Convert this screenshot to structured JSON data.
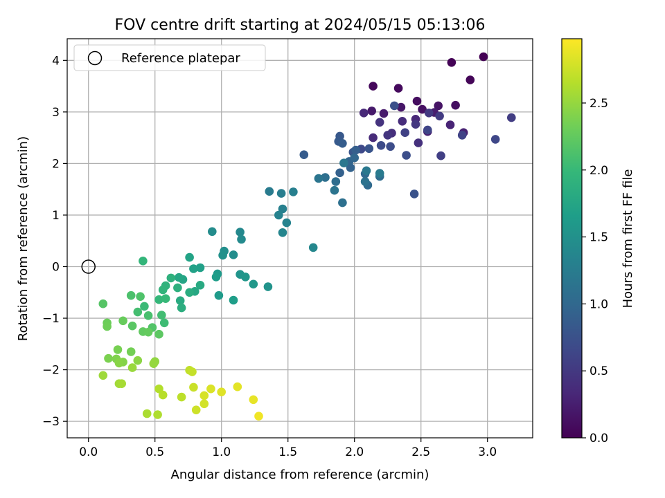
{
  "chart_data": {
    "type": "scatter",
    "title": "FOV centre drift starting at 2024/05/15 05:13:06",
    "xlabel": "Angular distance from reference (arcmin)",
    "ylabel": "Rotation from reference (arcmin)",
    "xlim": [
      -0.16,
      3.34
    ],
    "ylim": [
      -3.32,
      4.42
    ],
    "xticks": [
      0.0,
      0.5,
      1.0,
      1.5,
      2.0,
      2.5,
      3.0
    ],
    "xtick_labels": [
      "0.0",
      "0.5",
      "1.0",
      "1.5",
      "2.0",
      "2.5",
      "3.0"
    ],
    "yticks": [
      -3,
      -2,
      -1,
      0,
      1,
      2,
      3,
      4
    ],
    "ytick_labels": [
      "−3",
      "−2",
      "−1",
      "0",
      "1",
      "2",
      "3",
      "4"
    ],
    "grid": true,
    "legend": {
      "placement": "top-left",
      "entries": [
        {
          "label": "Reference platepar",
          "marker": "hollow-circle"
        }
      ]
    },
    "reference_point": {
      "x": 0.0,
      "y": 0.0,
      "label": "Reference platepar"
    },
    "colorbar": {
      "label": "Hours from first FF file",
      "colormap": "viridis",
      "range": [
        0.0,
        2.98
      ],
      "ticks": [
        0.0,
        0.5,
        1.0,
        1.5,
        2.0,
        2.5
      ],
      "tick_labels": [
        "0.0",
        "0.5",
        "1.0",
        "1.5",
        "2.0",
        "2.5"
      ]
    },
    "colormap_stops": [
      "#440154",
      "#482878",
      "#3e4989",
      "#31688e",
      "#26828e",
      "#1f9e89",
      "#35b779",
      "#6ece58",
      "#b5de2b",
      "#fde725"
    ],
    "points": [
      [
        2.97,
        4.07,
        0.0
      ],
      [
        2.73,
        3.96,
        0.02
      ],
      [
        2.87,
        3.62,
        0.04
      ],
      [
        2.14,
        3.5,
        0.06
      ],
      [
        2.33,
        3.46,
        0.08
      ],
      [
        2.47,
        3.21,
        0.1
      ],
      [
        2.76,
        3.13,
        0.12
      ],
      [
        2.51,
        3.05,
        0.14
      ],
      [
        2.63,
        3.12,
        0.16
      ],
      [
        2.35,
        3.09,
        0.18
      ],
      [
        2.13,
        3.02,
        0.2
      ],
      [
        2.22,
        2.97,
        0.22
      ],
      [
        2.6,
        2.99,
        0.24
      ],
      [
        2.55,
        2.62,
        0.26
      ],
      [
        2.82,
        2.6,
        0.28
      ],
      [
        2.72,
        2.75,
        0.3
      ],
      [
        2.46,
        2.86,
        0.32
      ],
      [
        2.07,
        2.98,
        0.34
      ],
      [
        2.14,
        2.5,
        0.36
      ],
      [
        2.36,
        2.82,
        0.38
      ],
      [
        2.28,
        2.59,
        0.4
      ],
      [
        2.48,
        2.4,
        0.42
      ],
      [
        2.19,
        2.8,
        0.44
      ],
      [
        2.25,
        2.55,
        0.46
      ],
      [
        2.46,
        2.76,
        0.48
      ],
      [
        2.56,
        2.98,
        0.5
      ],
      [
        2.64,
        2.92,
        0.52
      ],
      [
        3.18,
        2.89,
        0.54
      ],
      [
        2.65,
        2.15,
        0.56
      ],
      [
        2.38,
        2.6,
        0.58
      ],
      [
        2.81,
        2.55,
        0.6
      ],
      [
        2.55,
        2.65,
        0.62
      ],
      [
        3.06,
        2.47,
        0.64
      ],
      [
        2.05,
        2.28,
        0.66
      ],
      [
        2.2,
        2.35,
        0.68
      ],
      [
        2.27,
        2.33,
        0.7
      ],
      [
        2.39,
        2.16,
        0.72
      ],
      [
        2.3,
        3.12,
        0.74
      ],
      [
        2.45,
        1.41,
        0.76
      ],
      [
        2.11,
        2.29,
        0.78
      ],
      [
        1.99,
        2.22,
        0.8
      ],
      [
        1.89,
        2.53,
        0.82
      ],
      [
        1.88,
        2.43,
        0.84
      ],
      [
        1.62,
        2.17,
        0.86
      ],
      [
        1.91,
        2.39,
        0.88
      ],
      [
        2.01,
        2.26,
        0.9
      ],
      [
        1.89,
        1.82,
        0.92
      ],
      [
        1.97,
        1.92,
        0.94
      ],
      [
        1.96,
        2.04,
        0.96
      ],
      [
        2.0,
        2.11,
        0.98
      ],
      [
        2.08,
        1.8,
        1.0
      ],
      [
        2.1,
        1.58,
        1.02
      ],
      [
        2.19,
        1.75,
        1.04
      ],
      [
        1.86,
        1.65,
        1.06
      ],
      [
        1.78,
        1.73,
        1.08
      ],
      [
        1.91,
        1.24,
        1.1
      ],
      [
        2.08,
        1.65,
        1.12
      ],
      [
        1.85,
        1.48,
        1.14
      ],
      [
        1.73,
        1.71,
        1.16
      ],
      [
        1.92,
        2.01,
        1.18
      ],
      [
        2.09,
        1.86,
        1.2
      ],
      [
        2.19,
        1.81,
        1.22
      ],
      [
        1.36,
        1.46,
        1.24
      ],
      [
        1.45,
        1.42,
        1.26
      ],
      [
        1.54,
        1.45,
        1.28
      ],
      [
        1.46,
        1.12,
        1.3
      ],
      [
        1.43,
        1.0,
        1.32
      ],
      [
        1.49,
        0.85,
        1.34
      ],
      [
        1.46,
        0.66,
        1.36
      ],
      [
        1.69,
        0.37,
        1.38
      ],
      [
        1.14,
        0.67,
        1.4
      ],
      [
        1.15,
        0.53,
        1.42
      ],
      [
        0.93,
        0.68,
        1.44
      ],
      [
        1.09,
        0.23,
        1.46
      ],
      [
        1.02,
        0.3,
        1.48
      ],
      [
        1.01,
        0.22,
        1.5
      ],
      [
        1.35,
        -0.39,
        1.52
      ],
      [
        1.14,
        -0.15,
        1.54
      ],
      [
        1.18,
        -0.2,
        1.56
      ],
      [
        1.24,
        -0.34,
        1.58
      ],
      [
        0.97,
        -0.14,
        1.6
      ],
      [
        0.98,
        -0.56,
        1.62
      ],
      [
        0.96,
        -0.2,
        1.64
      ],
      [
        1.09,
        -0.65,
        1.66
      ],
      [
        0.84,
        -0.02,
        1.68
      ],
      [
        0.79,
        -0.04,
        1.7
      ],
      [
        0.76,
        0.18,
        1.72
      ],
      [
        0.71,
        -0.25,
        1.74
      ],
      [
        0.68,
        -0.21,
        1.76
      ],
      [
        0.8,
        -0.48,
        1.78
      ],
      [
        0.84,
        -0.36,
        1.8
      ],
      [
        0.69,
        -0.66,
        1.82
      ],
      [
        0.76,
        -0.5,
        1.84
      ],
      [
        0.7,
        -0.8,
        1.86
      ],
      [
        0.67,
        -0.41,
        1.88
      ],
      [
        0.62,
        -0.22,
        1.9
      ],
      [
        0.58,
        -0.37,
        1.92
      ],
      [
        0.56,
        -0.45,
        1.94
      ],
      [
        0.41,
        0.11,
        1.96
      ],
      [
        0.53,
        -0.64,
        1.98
      ],
      [
        0.58,
        -0.62,
        2.0
      ],
      [
        0.42,
        -0.77,
        2.02
      ],
      [
        0.57,
        -1.09,
        2.04
      ],
      [
        0.55,
        -0.94,
        2.06
      ],
      [
        0.37,
        -0.88,
        2.08
      ],
      [
        0.45,
        -0.95,
        2.1
      ],
      [
        0.32,
        -0.56,
        2.12
      ],
      [
        0.39,
        -0.58,
        2.14
      ],
      [
        0.48,
        -1.18,
        2.16
      ],
      [
        0.11,
        -0.72,
        2.18
      ],
      [
        0.33,
        -1.15,
        2.2
      ],
      [
        0.53,
        -1.31,
        2.22
      ],
      [
        0.41,
        -1.26,
        2.24
      ],
      [
        0.45,
        -1.27,
        2.26
      ],
      [
        0.26,
        -1.05,
        2.28
      ],
      [
        0.14,
        -1.09,
        2.3
      ],
      [
        0.14,
        -1.16,
        2.32
      ],
      [
        0.32,
        -1.65,
        2.34
      ],
      [
        0.22,
        -1.61,
        2.36
      ],
      [
        0.15,
        -1.78,
        2.38
      ],
      [
        0.21,
        -1.79,
        2.4
      ],
      [
        0.26,
        -1.85,
        2.42
      ],
      [
        0.23,
        -1.87,
        2.44
      ],
      [
        0.37,
        -1.82,
        2.46
      ],
      [
        0.5,
        -1.84,
        2.48
      ],
      [
        0.49,
        -1.88,
        2.5
      ],
      [
        0.33,
        -1.96,
        2.52
      ],
      [
        0.11,
        -2.11,
        2.54
      ],
      [
        0.23,
        -2.27,
        2.56
      ],
      [
        0.25,
        -2.27,
        2.58
      ],
      [
        0.44,
        -2.85,
        2.6
      ],
      [
        0.52,
        -2.87,
        2.62
      ],
      [
        0.53,
        -2.37,
        2.64
      ],
      [
        0.56,
        -2.49,
        2.66
      ],
      [
        0.7,
        -2.53,
        2.68
      ],
      [
        0.76,
        -2.01,
        2.7
      ],
      [
        0.78,
        -2.04,
        2.72
      ],
      [
        0.79,
        -2.34,
        2.74
      ],
      [
        0.81,
        -2.78,
        2.76
      ],
      [
        0.87,
        -2.66,
        2.78
      ],
      [
        0.87,
        -2.5,
        2.8
      ],
      [
        0.92,
        -2.37,
        2.82
      ],
      [
        1.0,
        -2.43,
        2.84
      ],
      [
        1.12,
        -2.33,
        2.86
      ],
      [
        1.24,
        -2.58,
        2.88
      ],
      [
        1.28,
        -2.9,
        2.92
      ]
    ]
  }
}
